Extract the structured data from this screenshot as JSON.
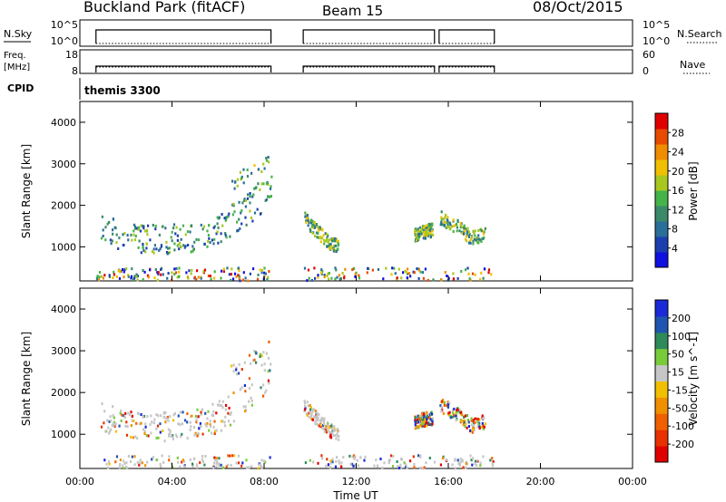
{
  "chart_data": {
    "type": "heatmap",
    "header": {
      "title": "Buckland Park (fitACF)",
      "beam": "Beam 15",
      "date": "08/Oct/2015"
    },
    "top_panel": {
      "nsky_label": "N.Sky",
      "nsky_ticks": [
        "10^5",
        "10^0"
      ],
      "nsearch_label": "N.Search",
      "nsearch_ticks": [
        "10^5",
        "10^0"
      ],
      "freq_label": "Freq.",
      "freq_unit": "[MHz]",
      "freq_ticks": [
        "18",
        "8"
      ],
      "nave_label": "Nave",
      "nave_ticks": [
        "60",
        "0"
      ],
      "cpid_label": "CPID",
      "cpid_value": "themis 3300",
      "data_segments_hours": [
        [
          0.7,
          8.3
        ],
        [
          9.7,
          15.4
        ],
        [
          15.6,
          18.0
        ]
      ]
    },
    "x_axis": {
      "label": "Time UT",
      "range_hours": [
        0,
        24
      ],
      "tick_hours": [
        0,
        4,
        8,
        12,
        16,
        20,
        24
      ],
      "tick_labels": [
        "00:00",
        "04:00",
        "08:00",
        "12:00",
        "16:00",
        "20:00",
        "00:00"
      ]
    },
    "y_axis": {
      "label": "Slant Range [km]",
      "range_km": [
        180,
        4500
      ],
      "tick_values": [
        1000,
        2000,
        3000,
        4000
      ],
      "tick_labels": [
        "1000",
        "2000",
        "3000",
        "4000"
      ]
    },
    "power_panel": {
      "colorbar_label": "Power [dB]",
      "colorbar_ticks": [
        "4",
        "8",
        "12",
        "16",
        "20",
        "24",
        "28"
      ],
      "colorbar_range": [
        0,
        32
      ],
      "colors": [
        "#1010e0",
        "#1c3fb0",
        "#2a6e9a",
        "#3a8a6a",
        "#45b34a",
        "#a8c820",
        "#f0c000",
        "#f08c00",
        "#e84a00",
        "#e00000"
      ]
    },
    "velocity_panel": {
      "colorbar_label": "Velocity [m s^-1]",
      "colorbar_ticks": [
        "200",
        "100",
        "50",
        "15",
        "-15",
        "-50",
        "-100",
        "-200"
      ],
      "colors": [
        "#1a2ad8",
        "#1f55b0",
        "#2e8a5a",
        "#78cc3a",
        "#c6c6c6",
        "#f0c000",
        "#f09000",
        "#f06000",
        "#e83000",
        "#e00000"
      ]
    },
    "scatter_bands": [
      {
        "name": "lower-band",
        "points": [
          [
            0.9,
            1200
          ],
          [
            2,
            1070
          ],
          [
            3,
            1000
          ],
          [
            4,
            990
          ],
          [
            5,
            1060
          ],
          [
            6,
            1200
          ],
          [
            7,
            1550
          ],
          [
            7.8,
            1950
          ],
          [
            8.3,
            2350
          ]
        ]
      },
      {
        "name": "upper-band",
        "points": [
          [
            0.9,
            1580
          ],
          [
            2,
            1420
          ],
          [
            3,
            1350
          ],
          [
            4,
            1370
          ],
          [
            5,
            1450
          ],
          [
            6,
            1620
          ],
          [
            7,
            2000
          ],
          [
            7.8,
            2450
          ],
          [
            8.3,
            2750
          ]
        ]
      },
      {
        "name": "sparse-upper",
        "points": [
          [
            6.5,
            2500
          ],
          [
            7.2,
            2750
          ],
          [
            7.8,
            2950
          ],
          [
            8.2,
            3150
          ]
        ]
      },
      {
        "name": "ground-scatter",
        "points": [
          [
            0.7,
            330
          ],
          [
            8.3,
            330
          ],
          [
            9.7,
            330
          ],
          [
            15.4,
            330
          ],
          [
            15.6,
            330
          ],
          [
            18,
            330
          ]
        ]
      },
      {
        "name": "afternoon-echo",
        "points": [
          [
            9.7,
            1700
          ],
          [
            10.2,
            1400
          ],
          [
            10.8,
            1100
          ],
          [
            11.2,
            1000
          ]
        ]
      },
      {
        "name": "evening-echo-1",
        "points": [
          [
            14.5,
            1300
          ],
          [
            15.3,
            1400
          ]
        ]
      },
      {
        "name": "evening-echo-2",
        "points": [
          [
            15.6,
            1700
          ],
          [
            16.3,
            1500
          ],
          [
            17,
            1200
          ],
          [
            17.6,
            1300
          ]
        ]
      }
    ]
  }
}
